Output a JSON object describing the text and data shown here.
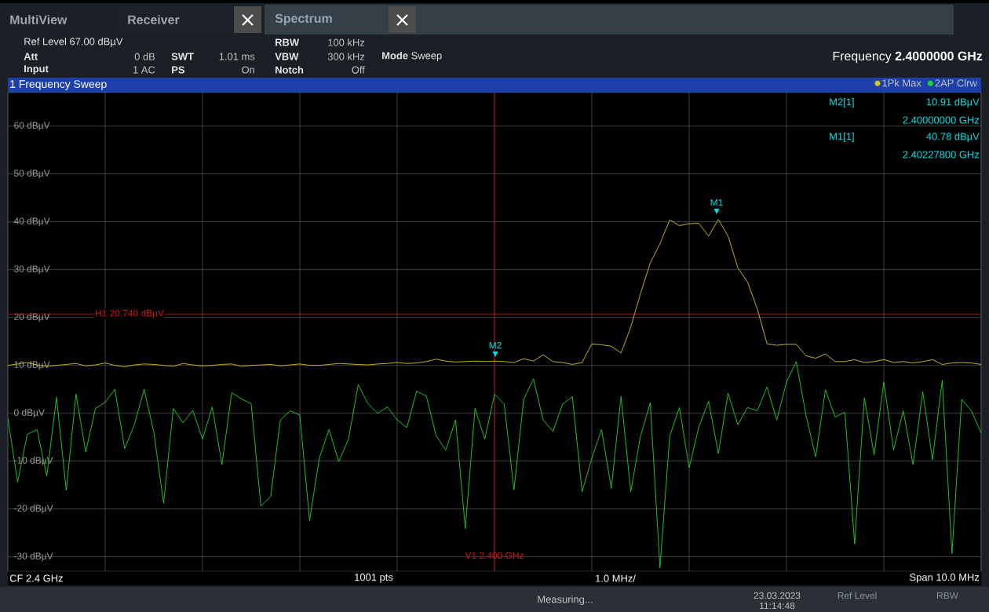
{
  "chart_data": {
    "type": "line",
    "title": "1 Frequency Sweep",
    "categories": [
      null,
      null,
      null,
      null,
      null,
      null,
      null,
      null,
      null,
      null,
      null,
      null,
      null,
      null,
      null,
      null,
      null,
      null,
      null,
      null,
      null,
      null,
      null,
      null,
      null,
      null,
      null,
      null,
      null,
      null,
      null,
      null,
      null,
      null,
      null,
      null,
      null,
      null,
      null,
      null,
      null,
      null,
      null,
      null,
      null,
      null,
      null,
      null,
      null,
      null,
      null,
      null,
      null,
      null,
      null,
      null,
      null,
      null,
      null,
      null,
      null,
      null,
      null,
      null,
      null,
      null,
      null,
      null,
      null,
      null,
      null,
      null,
      null,
      null,
      null,
      null,
      null,
      null,
      null,
      null,
      null,
      null,
      null,
      null,
      null,
      null,
      null,
      null,
      null,
      null,
      null,
      null,
      null,
      null,
      null,
      null,
      null,
      null,
      null,
      null,
      null
    ],
    "ylim": [
      -33,
      67
    ],
    "yticks": [
      {
        "value": -30,
        "label": "-30 dBµV"
      },
      {
        "value": -20,
        "label": "-20 dBµV"
      },
      {
        "value": -10,
        "label": "-10 dBµV"
      },
      {
        "value": 0,
        "label": "0 dBµV"
      },
      {
        "value": 10,
        "label": "10 dBµV"
      },
      {
        "value": 20,
        "label": "20 dBµV"
      },
      {
        "value": 30,
        "label": "30 dBµV"
      },
      {
        "value": 40,
        "label": "40 dBµV"
      },
      {
        "value": 50,
        "label": "50 dBµV"
      },
      {
        "value": 60,
        "label": "60 dBµV"
      }
    ],
    "tick_labels": "y",
    "grid": true,
    "legend": "top right",
    "series": [
      {
        "name": "1Pk Max",
        "color": "#d8c41c",
        "values": [
          10.0,
          10.3,
          10.6,
          10.1,
          9.8,
          10.0,
          10.2,
          10.4,
          9.9,
          10.1,
          10.5,
          10.0,
          9.7,
          10.1,
          10.3,
          10.2,
          10.0,
          9.8,
          10.4,
          10.1,
          9.9,
          10.0,
          10.2,
          10.3,
          9.8,
          10.0,
          10.1,
          10.2,
          9.9,
          10.1,
          10.3,
          10.0,
          10.0,
          10.2,
          10.4,
          10.3,
          10.2,
          10.1,
          10.3,
          10.4,
          10.6,
          10.4,
          10.5,
          10.8,
          11.3,
          10.9,
          10.7,
          10.8,
          10.9,
          10.8,
          10.9,
          10.8,
          10.6,
          11.4,
          10.9,
          12.2,
          10.8,
          10.6,
          10.2,
          10.6,
          14.5,
          14.3,
          14.0,
          12.6,
          18.0,
          25.0,
          31.4,
          35.4,
          40.4,
          39.2,
          39.6,
          39.7,
          37.0,
          40.5,
          37.0,
          30.4,
          27.4,
          21.8,
          14.5,
          14.2,
          14.4,
          14.4,
          12.0,
          11.5,
          12.4,
          10.8,
          10.8,
          11.2,
          10.6,
          10.8,
          11.2,
          10.6,
          10.8,
          10.5,
          10.8,
          11.2,
          10.2,
          10.5,
          10.6,
          10.5,
          10.2
        ]
      },
      {
        "name": "2AP Clrw",
        "color": "#22d62a",
        "values": [
          -1.0,
          -14.4,
          -4.4,
          -3.4,
          -13.1,
          3.3,
          -16.1,
          4.0,
          -8.1,
          1.0,
          2.3,
          5.0,
          -7.4,
          -2.4,
          5.0,
          -4.0,
          -18.8,
          1.0,
          -2.0,
          0.6,
          -5.4,
          1.3,
          -10.7,
          4.3,
          3.0,
          2.0,
          -19.4,
          -17.4,
          -1.4,
          0.5,
          -0.4,
          -22.4,
          -9.4,
          -3.4,
          -10.1,
          -5.4,
          6.0,
          2.0,
          0.0,
          1.3,
          -1.4,
          -3.0,
          4.6,
          3.6,
          -4.7,
          -7.7,
          -1.4,
          -24.1,
          1.0,
          -5.4,
          4.0,
          1.9,
          -16.0,
          2.9,
          7.2,
          -1.4,
          -3.8,
          1.9,
          3.5,
          -16.4,
          -9.4,
          -3.4,
          -15.7,
          3.5,
          -16.4,
          -4.8,
          2.2,
          -32.3,
          -4.8,
          1.2,
          -11.4,
          -2.8,
          2.5,
          -8.4,
          4.2,
          -2.4,
          1.2,
          0.5,
          5.5,
          -1.4,
          6.5,
          10.8,
          -0.4,
          -9.1,
          4.9,
          -0.8,
          0.2,
          -27.3,
          3.2,
          -8.7,
          6.5,
          -7.7,
          0.5,
          -10.7,
          4.5,
          -9.7,
          6.9,
          -29.3,
          2.9,
          0.5,
          -4.1
        ]
      }
    ],
    "ref_lines": [
      {
        "axis": "y",
        "value": 20.74,
        "label": "H1 20.740 dBµV",
        "color": "#d01414"
      }
    ],
    "annotations": [
      "MultiView",
      "Receiver",
      "Spectrum",
      "Ref Level 67.00 dBµV",
      "Att",
      "0 dB",
      "Input",
      "1 AC",
      "SWT",
      "1.01 ms",
      "PS",
      "On",
      "RBW",
      "100 kHz",
      "VBW",
      "300 kHz",
      "Notch",
      "Off",
      "**Mode** Sweep",
      "Frequency **2.4000000 GHz**",
      "M2[1]",
      "10.91 dBµV",
      "2.40000000 GHz",
      "M1[1]",
      "40.78 dBµV",
      "2.40227800 GHz",
      "CF 2.4 GHz",
      "1001 pts",
      "1.0 MHz/",
      "Span 10.0 MHz",
      "Measuring...",
      "23.03.2023",
      "11:14:48",
      "Ref Level",
      "RBW",
      "M1",
      "M2",
      "V1 2.400 GHz"
    ]
  }
}
